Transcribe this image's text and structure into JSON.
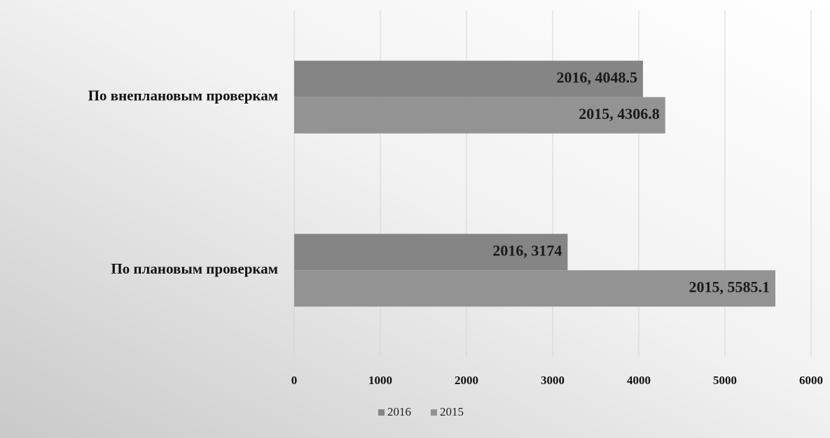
{
  "chart_data": {
    "type": "bar",
    "orientation": "horizontal",
    "categories": [
      "По внеплановым проверкам",
      "По плановым проверкам"
    ],
    "series": [
      {
        "name": "2016",
        "color": "#858585",
        "values": [
          4048.5,
          3174
        ],
        "value_labels": [
          "2016, 4048.5",
          "2016, 3174"
        ]
      },
      {
        "name": "2015",
        "color": "#939393",
        "values": [
          4306.8,
          5585.1
        ],
        "value_labels": [
          "2015, 4306.8",
          "2015, 5585.1"
        ]
      }
    ],
    "xlim": [
      0,
      6000
    ],
    "xticks": [
      0,
      1000,
      2000,
      3000,
      4000,
      5000,
      6000
    ],
    "grid": true,
    "legend": "bottom"
  }
}
